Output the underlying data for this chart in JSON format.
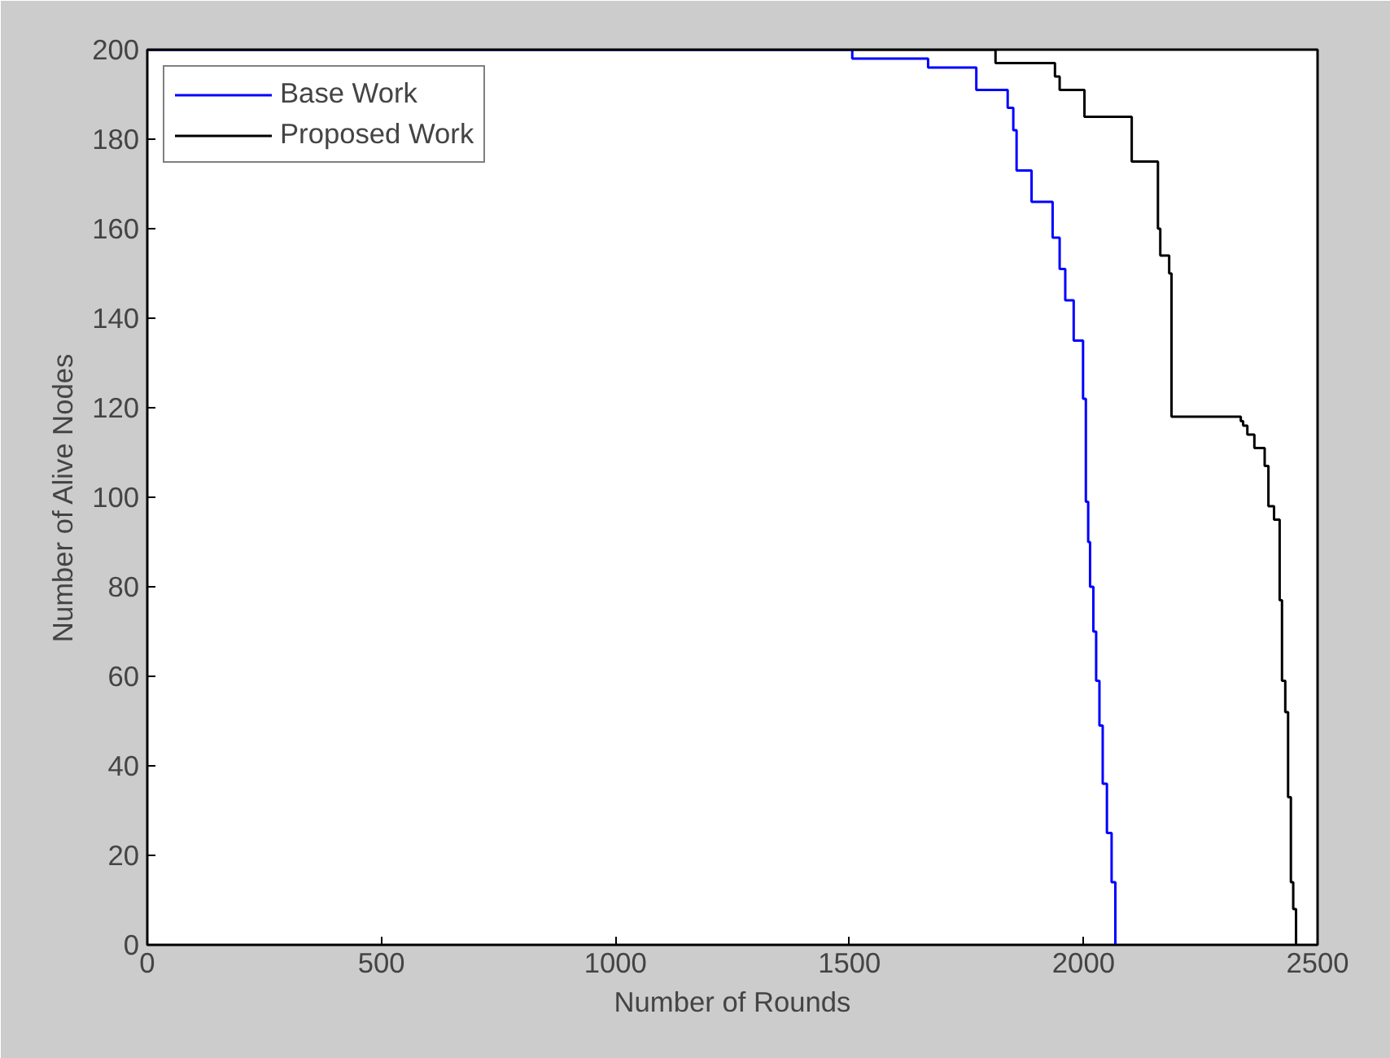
{
  "chart_data": {
    "type": "step",
    "xlabel": "Number of Rounds",
    "ylabel": "Number of Alive Nodes",
    "xlim": [
      0,
      2500
    ],
    "ylim": [
      0,
      200
    ],
    "xticks": [
      0,
      500,
      1000,
      1500,
      2000,
      2500
    ],
    "yticks": [
      0,
      20,
      40,
      60,
      80,
      100,
      120,
      140,
      160,
      180,
      200
    ],
    "grid": false,
    "legend": "top left",
    "marker": "none",
    "line_style": "solid",
    "series": [
      {
        "name": "Base Work",
        "color": "#0000ff",
        "x": [
          0,
          1506,
          1668,
          1771,
          1838,
          1850,
          1857,
          1889,
          1934,
          1949,
          1961,
          1979,
          1999,
          2005,
          2010,
          2014,
          2021,
          2027,
          2034,
          2041,
          2050,
          2060,
          2068
        ],
        "values": [
          200,
          198,
          196,
          191,
          187,
          182,
          173,
          166,
          158,
          151,
          144,
          135,
          122,
          99,
          90,
          80,
          70,
          59,
          49,
          36,
          25,
          14,
          0
        ]
      },
      {
        "name": "Proposed Work",
        "color": "#000000",
        "x": [
          0,
          1812,
          1939,
          1949,
          2002,
          2103,
          2159,
          2164,
          2183,
          2188,
          2336,
          2341,
          2350,
          2365,
          2387,
          2395,
          2407,
          2419,
          2424,
          2431,
          2437,
          2443,
          2448,
          2454
        ],
        "values": [
          200,
          197,
          194,
          191,
          185,
          175,
          160,
          154,
          150,
          118,
          117,
          116,
          114,
          111,
          107,
          98,
          95,
          77,
          59,
          52,
          33,
          14,
          8,
          0
        ]
      }
    ]
  }
}
